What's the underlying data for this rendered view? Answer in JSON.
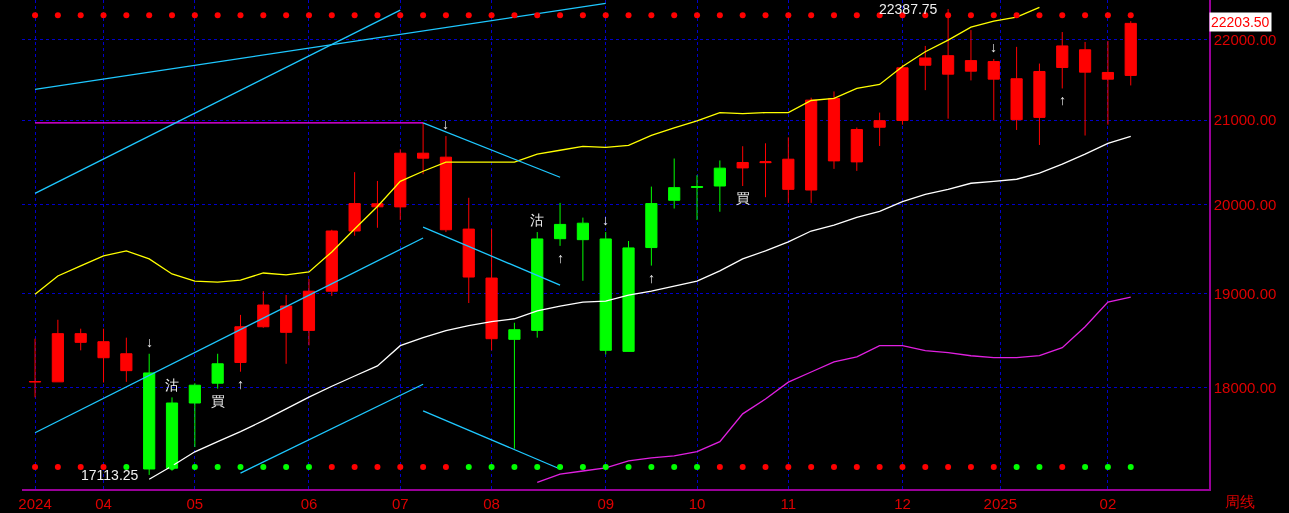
{
  "chart_data": {
    "type": "candlestick",
    "x": [
      "2024-03-11",
      "2024-03-18",
      "2024-03-25",
      "2024-04-01",
      "2024-04-08",
      "2024-04-15",
      "2024-04-22",
      "2024-04-29",
      "2024-05-06",
      "2024-05-13",
      "2024-05-20",
      "2024-05-27",
      "2024-06-03",
      "2024-06-10",
      "2024-06-17",
      "2024-06-24",
      "2024-07-01",
      "2024-07-08",
      "2024-07-15",
      "2024-07-22",
      "2024-07-29",
      "2024-08-05",
      "2024-08-12",
      "2024-08-19",
      "2024-08-26",
      "2024-09-02",
      "2024-09-09",
      "2024-09-16",
      "2024-09-23",
      "2024-09-30",
      "2024-10-07",
      "2024-10-14",
      "2024-10-21",
      "2024-10-28",
      "2024-11-04",
      "2024-11-11",
      "2024-11-18",
      "2024-11-25",
      "2024-12-02",
      "2024-12-09",
      "2024-12-16",
      "2024-12-23",
      "2024-12-30",
      "2025-01-06",
      "2025-01-13",
      "2025-01-20",
      "2025-01-27",
      "2025-02-03",
      "2025-02-10"
    ],
    "series": [
      {
        "ohlc": [
          [
            18055,
            18512,
            17896,
            18060
          ],
          [
            18057,
            18715,
            18057,
            18566
          ],
          [
            18473,
            18619,
            18388,
            18566
          ],
          [
            18310,
            18619,
            18050,
            18480
          ],
          [
            18174,
            18523,
            18057,
            18352
          ],
          [
            18150,
            18352,
            17113.25,
            17172
          ],
          [
            17838,
            17896,
            17155,
            17180
          ],
          [
            18022,
            18043,
            17391,
            17838
          ],
          [
            18246,
            18352,
            17987,
            18043
          ],
          [
            18260,
            18768,
            18163,
            18640
          ],
          [
            18640,
            19026,
            18629,
            18875
          ],
          [
            18580,
            18985,
            18246,
            18864
          ],
          [
            18601,
            19160,
            18441,
            19026
          ],
          [
            19026,
            19712,
            18974,
            19698
          ],
          [
            19698,
            20378,
            19645,
            20012
          ],
          [
            19975,
            20275,
            19735,
            20010
          ],
          [
            19974,
            20649,
            19824,
            20602
          ],
          [
            20543,
            20965,
            20354,
            20602
          ],
          [
            19712,
            20806,
            19686,
            20555
          ],
          [
            19182,
            20079,
            18897,
            19720
          ],
          [
            18512,
            19720,
            18388,
            19171
          ],
          [
            18608,
            18683,
            17374,
            18505
          ],
          [
            19608,
            19686,
            18523,
            18601
          ],
          [
            19773,
            20020,
            19530,
            19611
          ],
          [
            19787,
            19851,
            19141,
            19600
          ],
          [
            19608,
            19686,
            18345,
            18388
          ],
          [
            19507,
            19585,
            18377,
            18377
          ],
          [
            20012,
            20209,
            19309,
            19511
          ],
          [
            20197,
            20539,
            19955,
            20050
          ],
          [
            20210,
            20342,
            19824,
            20200
          ],
          [
            20425,
            20516,
            19918,
            20216
          ],
          [
            20428,
            20685,
            20216,
            20492
          ],
          [
            20490,
            20720,
            20086,
            20500
          ],
          [
            20177,
            20791,
            20020,
            20531
          ],
          [
            20169,
            21272,
            20020,
            21242
          ],
          [
            20511,
            21349,
            20417,
            21263
          ],
          [
            20499,
            20909,
            20393,
            20885
          ],
          [
            20913,
            21090,
            20688,
            20992
          ],
          [
            20995,
            21679,
            20944,
            21642
          ],
          [
            21674,
            21917,
            21365,
            21765
          ],
          [
            21563,
            22387.75,
            21016,
            21794
          ],
          [
            21600,
            22118,
            21485,
            21732
          ],
          [
            21501,
            21753,
            20995,
            21720
          ],
          [
            21004,
            21905,
            20880,
            21506
          ],
          [
            21032,
            21695,
            20700,
            21596
          ],
          [
            21646,
            22093,
            21386,
            21917
          ],
          [
            21588,
            21967,
            20813,
            21868
          ],
          [
            21501,
            21979,
            20944,
            21584
          ],
          [
            21547,
            22232,
            21423,
            22203.5
          ]
        ],
        "colors": [
          "#ff0000",
          "#ff0000",
          "#ff0000",
          "#ff0000",
          "#ff0000",
          "#00ff00",
          "#00ff00",
          "#00ff00",
          "#00ff00",
          "#ff0000",
          "#ff0000",
          "#ff0000",
          "#ff0000",
          "#ff0000",
          "#ff0000",
          "#ff0000",
          "#ff0000",
          "#ff0000",
          "#ff0000",
          "#ff0000",
          "#ff0000",
          "#00ff00",
          "#00ff00",
          "#00ff00",
          "#00ff00",
          "#00ff00",
          "#00ff00",
          "#00ff00",
          "#00ff00",
          "#00ff00",
          "#00ff00",
          "#ff0000",
          "#ff0000",
          "#ff0000",
          "#ff0000",
          "#ff0000",
          "#ff0000",
          "#ff0000",
          "#ff0000",
          "#ff0000",
          "#ff0000",
          "#ff0000",
          "#ff0000",
          "#ff0000",
          "#ff0000",
          "#ff0000",
          "#ff0000",
          "#ff0000",
          "#ff0000"
        ]
      },
      {
        "type": "line",
        "color": "#ffff00",
        "line_style": "solid",
        "values": [
          18993,
          19194,
          19306,
          19418,
          19474,
          19384,
          19216,
          19138,
          19126,
          19149,
          19227,
          19205,
          19238,
          19462,
          19720,
          19978,
          20271,
          20389,
          20496,
          20496,
          20496,
          20496,
          20590,
          20637,
          20684,
          20672,
          20696,
          20815,
          20905,
          20991,
          21090,
          21078,
          21090,
          21090,
          21238,
          21263,
          21386,
          21436,
          21658,
          21843,
          21991,
          22156,
          22232,
          22283,
          22410,
          null,
          null,
          null,
          null
        ]
      },
      {
        "type": "line",
        "color": "#ffffff",
        "line_style": "solid",
        "values": [
          null,
          null,
          null,
          null,
          null,
          17071,
          17202,
          17343,
          17445,
          17546,
          17657,
          17778,
          17899,
          18011,
          18118,
          18224,
          18438,
          18523,
          18598,
          18651,
          18694,
          18726,
          18811,
          18864,
          18907,
          18918,
          18982,
          19026,
          19082,
          19138,
          19250,
          19384,
          19474,
          19574,
          19698,
          19765,
          19854,
          19922,
          20035,
          20118,
          20177,
          20248,
          20271,
          20295,
          20366,
          20472,
          20590,
          20720,
          20803
        ]
      },
      {
        "type": "line",
        "color": "#e020e0",
        "line_style": "solid",
        "values": [
          null,
          null,
          null,
          null,
          null,
          null,
          null,
          null,
          null,
          null,
          null,
          null,
          null,
          null,
          null,
          null,
          null,
          null,
          null,
          null,
          null,
          null,
          17040,
          17121,
          17152,
          17182,
          17253,
          17283,
          17303,
          17344,
          17445,
          17727,
          17879,
          18054,
          18160,
          18267,
          18320,
          18438,
          18438,
          18384,
          18363,
          18331,
          18310,
          18310,
          18331,
          18416,
          18640,
          18907,
          18961
        ]
      },
      {
        "type": "line",
        "color": "#ff00ff",
        "line_style": "solid",
        "x": [
          "2024-03-11",
          "2024-07-08"
        ],
        "values": [
          20965,
          20965
        ]
      },
      {
        "type": "line",
        "color": "#1ec8ff",
        "line_style": "solid",
        "x": [
          "2024-03-11",
          "2024-09-02"
        ],
        "values": [
          21374,
          22461
        ]
      },
      {
        "type": "line",
        "color": "#1ec8ff",
        "line_style": "solid",
        "x": [
          "2024-03-11",
          "2024-07-01"
        ],
        "values": [
          20130,
          22373
        ]
      },
      {
        "type": "line",
        "color": "#1ec8ff",
        "line_style": "solid",
        "x": [
          "2024-03-11",
          "2024-07-08"
        ],
        "values": [
          17535,
          19619
        ]
      },
      {
        "type": "line",
        "color": "#1ec8ff",
        "line_style": "solid",
        "x": [
          "2024-05-13",
          "2024-07-08"
        ],
        "values": [
          17131,
          18032
        ]
      },
      {
        "type": "line",
        "color": "#1ec8ff",
        "line_style": "solid",
        "x": [
          "2024-07-08",
          "2024-08-19"
        ],
        "values": [
          20965,
          20318
        ]
      },
      {
        "type": "line",
        "color": "#1ec8ff",
        "line_style": "solid",
        "x": [
          "2024-07-08",
          "2024-08-19"
        ],
        "values": [
          19742,
          19093
        ]
      },
      {
        "type": "line",
        "color": "#1ec8ff",
        "line_style": "solid",
        "x": [
          "2024-07-08",
          "2024-08-19"
        ],
        "values": [
          17758,
          17172
        ]
      },
      {
        "type": "scatter",
        "marker": "circle",
        "values": [
          22309,
          22309,
          22309,
          22309,
          22309,
          22309,
          22309,
          22309,
          22309,
          22309,
          22309,
          22309,
          22309,
          22309,
          22309,
          22309,
          22309,
          22309,
          22309,
          22309,
          22309,
          22309,
          22309,
          22309,
          22309,
          22309,
          22309,
          22309,
          22309,
          22309,
          22309,
          22309,
          22309,
          22309,
          22309,
          22309,
          22309,
          22309,
          22309,
          22309,
          22309,
          22309,
          22309,
          22309,
          22309,
          22309,
          22309,
          22309,
          22309
        ],
        "colors": [
          "#ff0000",
          "#ff0000",
          "#ff0000",
          "#ff0000",
          "#ff0000",
          "#ff0000",
          "#ff0000",
          "#ff0000",
          "#ff0000",
          "#ff0000",
          "#ff0000",
          "#ff0000",
          "#ff0000",
          "#ff0000",
          "#ff0000",
          "#ff0000",
          "#ff0000",
          "#ff0000",
          "#ff0000",
          "#ff0000",
          "#ff0000",
          "#ff0000",
          "#ff0000",
          "#ff0000",
          "#ff0000",
          "#ff0000",
          "#ff0000",
          "#ff0000",
          "#ff0000",
          "#ff0000",
          "#ff0000",
          "#ff0000",
          "#ff0000",
          "#ff0000",
          "#ff0000",
          "#ff0000",
          "#ff0000",
          "#ff0000",
          "#ff0000",
          "#ff0000",
          "#ff0000",
          "#ff0000",
          "#ff0000",
          "#ff0000",
          "#ff0000",
          "#ff0000",
          "#ff0000",
          "#ff0000",
          "#ff0000"
        ]
      },
      {
        "type": "scatter",
        "marker": "circle",
        "values": [
          17192,
          17192,
          17192,
          17192,
          17192,
          null,
          17192,
          17192,
          17192,
          17192,
          17192,
          17192,
          17192,
          17192,
          17192,
          17192,
          17192,
          17192,
          17192,
          17192,
          17192,
          17192,
          17192,
          17192,
          17192,
          17192,
          17192,
          17192,
          17192,
          17192,
          17192,
          17192,
          17192,
          17192,
          17192,
          17192,
          17192,
          17192,
          17192,
          17192,
          17192,
          17192,
          17192,
          17192,
          17192,
          17192,
          17192,
          17192,
          17192
        ],
        "colors": [
          "#ff0000",
          "#ff0000",
          "#ff0000",
          "#ff0000",
          "#00ff00",
          null,
          "#00ff00",
          "#00ff00",
          "#00ff00",
          "#00ff00",
          "#00ff00",
          "#00ff00",
          "#00ff00",
          "#ff0000",
          "#ff0000",
          "#ff0000",
          "#ff0000",
          "#ff0000",
          "#ff0000",
          "#00ff00",
          "#00ff00",
          "#00ff00",
          "#00ff00",
          "#00ff00",
          "#00ff00",
          "#00ff00",
          "#00ff00",
          "#00ff00",
          "#00ff00",
          "#00ff00",
          "#ff0000",
          "#ff0000",
          "#ff0000",
          "#ff0000",
          "#ff0000",
          "#ff0000",
          "#ff0000",
          "#ff0000",
          "#ff0000",
          "#ff0000",
          "#ff0000",
          "#ff0000",
          "#ff0000",
          "#00ff00",
          "#00ff00",
          "#ff0000",
          "#00ff00",
          "#00ff00",
          "#00ff00"
        ]
      }
    ],
    "xlim": [
      "2024-03-07",
      "2025-03-06"
    ],
    "xticks": [
      {
        "value": "2024-03-11",
        "label": "2024"
      },
      {
        "value": "2024-04-01",
        "label": "04"
      },
      {
        "value": "2024-04-29",
        "label": "05"
      },
      {
        "value": "2024-06-03",
        "label": "06"
      },
      {
        "value": "2024-07-01",
        "label": "07"
      },
      {
        "value": "2024-07-29",
        "label": "08"
      },
      {
        "value": "2024-09-02",
        "label": "09"
      },
      {
        "value": "2024-09-30",
        "label": "10"
      },
      {
        "value": "2024-10-28",
        "label": "11"
      },
      {
        "value": "2024-12-02",
        "label": "12"
      },
      {
        "value": "2025-01-01",
        "label": "2025"
      },
      {
        "value": "2025-02-03",
        "label": "02"
      }
    ],
    "ylim": [
      16975,
      22505
    ],
    "yticks": [
      {
        "value": 18000,
        "label": "18000.00"
      },
      {
        "value": 19000,
        "label": "19000.00"
      },
      {
        "value": 20000,
        "label": "20000.00"
      },
      {
        "value": 21000,
        "label": "21000.00"
      },
      {
        "value": 22000,
        "label": "22000.00"
      }
    ],
    "log": true,
    "grid": true,
    "annotations": [
      {
        "text": "22387.75",
        "x": "2024-12-16",
        "y": 22387.75
      },
      {
        "text": "17113.25",
        "x": "2024-04-15",
        "y": 17113.25
      },
      {
        "text": "↓",
        "x": "2024-04-15",
        "y": 18352
      },
      {
        "text": "沽",
        "x": "2024-04-22",
        "y": 17896
      },
      {
        "text": "↑",
        "x": "2024-05-13",
        "y": 18163
      },
      {
        "text": "買",
        "x": "2024-05-06",
        "y": 17987
      },
      {
        "text": "↓",
        "x": "2024-07-15",
        "y": 20806
      },
      {
        "text": "沽",
        "x": "2024-08-12",
        "y": 19686
      },
      {
        "text": "↑",
        "x": "2024-08-19",
        "y": 19530
      },
      {
        "text": "↓",
        "x": "2024-09-02",
        "y": 19686
      },
      {
        "text": "↑",
        "x": "2024-09-16",
        "y": 19309
      },
      {
        "text": "買",
        "x": "2024-10-14",
        "y": 20216
      },
      {
        "text": "↓",
        "x": "2024-12-30",
        "y": 21753
      },
      {
        "text": "↑",
        "x": "2025-01-20",
        "y": 21386
      },
      "22203.50",
      "周线"
    ]
  }
}
